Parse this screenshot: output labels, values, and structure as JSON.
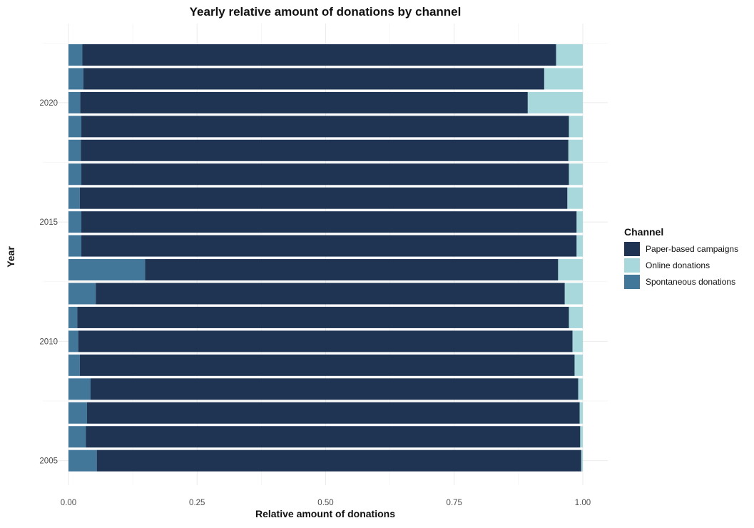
{
  "chart_data": {
    "type": "bar",
    "orientation": "horizontal",
    "stacked": true,
    "title": "Yearly relative amount of donations by channel",
    "xlabel": "Relative amount of donations",
    "ylabel": "Year",
    "xlim": [
      0,
      1
    ],
    "x_ticks": [
      "0.00",
      "0.25",
      "0.50",
      "0.75",
      "1.00"
    ],
    "y_ticks": [
      "2005",
      "2010",
      "2015",
      "2020"
    ],
    "grid": true,
    "legend": {
      "title": "Channel",
      "position": "right",
      "entries": [
        "Paper-based campaigns",
        "Online donations",
        "Spontaneous donations"
      ]
    },
    "colors": {
      "Paper-based campaigns": "#1f3453",
      "Online donations": "#a8d8dc",
      "Spontaneous donations": "#437799"
    },
    "categories": [
      2005,
      2006,
      2007,
      2008,
      2009,
      2010,
      2011,
      2012,
      2013,
      2014,
      2015,
      2016,
      2017,
      2018,
      2019,
      2020,
      2021,
      2022
    ],
    "series": [
      {
        "name": "Spontaneous donations",
        "values": [
          0.055,
          0.034,
          0.036,
          0.043,
          0.022,
          0.019,
          0.017,
          0.053,
          0.149,
          0.025,
          0.025,
          0.022,
          0.025,
          0.024,
          0.025,
          0.023,
          0.029,
          0.027
        ]
      },
      {
        "name": "Paper-based campaigns",
        "values": [
          0.942,
          0.961,
          0.958,
          0.948,
          0.962,
          0.961,
          0.956,
          0.912,
          0.803,
          0.963,
          0.963,
          0.948,
          0.948,
          0.948,
          0.948,
          0.87,
          0.896,
          0.921
        ]
      },
      {
        "name": "Online donations",
        "values": [
          0.003,
          0.005,
          0.006,
          0.009,
          0.016,
          0.02,
          0.027,
          0.035,
          0.048,
          0.012,
          0.012,
          0.03,
          0.027,
          0.028,
          0.027,
          0.107,
          0.075,
          0.052
        ]
      }
    ]
  }
}
